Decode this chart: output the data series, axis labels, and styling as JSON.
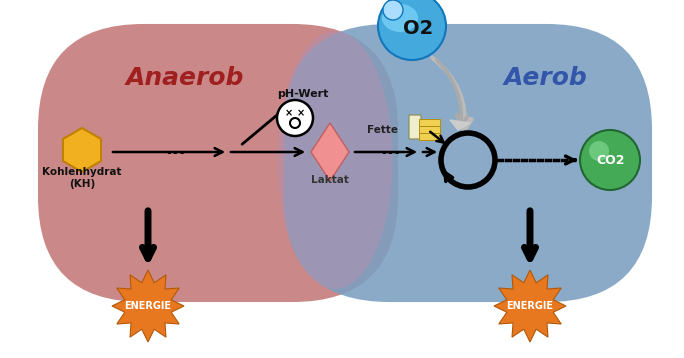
{
  "bg_color": "#ffffff",
  "anaerob_color": "#c47878",
  "aerob_color": "#7a9fc0",
  "anaerob_label": "Anaerob",
  "aerob_label": "Aerob",
  "anaerob_label_color": "#a02020",
  "aerob_label_color": "#3355aa",
  "energie_color": "#e87820",
  "energie_text": "ENERGIE",
  "energie_text_color": "#ffffff",
  "kh_label": "Kohlenhydrat\n(KH)",
  "laktat_label": "Laktat",
  "fette_label": "Fette",
  "ph_label": "pH-Wert",
  "o2_color_outer": "#44aadd",
  "o2_color_inner": "#88ddff",
  "co2_color": "#44aa55",
  "hexagon_color": "#f0b020",
  "hexagon_edge": "#c08000",
  "laktat_color": "#f09090",
  "laktat_edge": "#c06060"
}
